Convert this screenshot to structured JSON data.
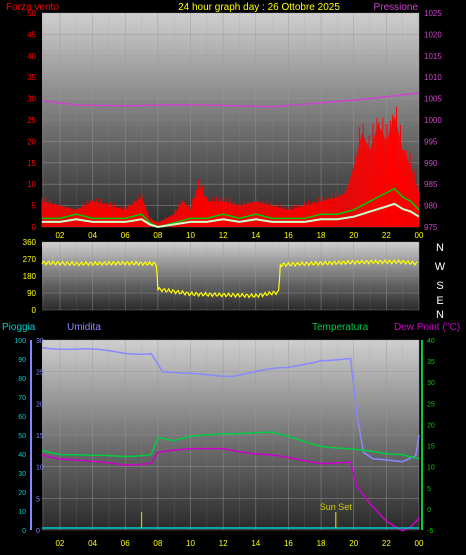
{
  "header": {
    "wind_label": "Forza vento",
    "title": "24 hour graph day : 26 Ottobre 2025",
    "pressure_label": "Pressione"
  },
  "colors": {
    "background": "#000000",
    "panel_top": "#c8c8c8",
    "panel_bottom": "#2a2a2a",
    "wind_gust": "#ff0000",
    "wind_speed": "#00cc00",
    "wind_light": "#ccffcc",
    "pressure": "#cc44cc",
    "direction": "#ffff00",
    "humidity": "#8888ff",
    "temperature": "#00cc44",
    "dewpoint": "#cc00cc",
    "rain": "#00cccc",
    "sunset": "#cccc00",
    "left_axis_text": "#ff0000",
    "right_axis_text": "#cc44cc",
    "temp_axis_text": "#00cc00",
    "rain_axis_text": "#00cccc",
    "hum_axis_text": "#8888ff",
    "dir_axis_text": "#ffff00",
    "hour_text": "#ffff00"
  },
  "hour_ticks": [
    "02",
    "04",
    "06",
    "08",
    "10",
    "12",
    "14",
    "16",
    "18",
    "20",
    "22",
    "00"
  ],
  "wind_axis_ticks": [
    "50",
    "45",
    "40",
    "35",
    "30",
    "25",
    "20",
    "15",
    "10",
    "5",
    "0"
  ],
  "pressure_axis_ticks": [
    "1025",
    "1020",
    "1015",
    "1010",
    "1005",
    "1000",
    "995",
    "990",
    "985",
    "980",
    "975"
  ],
  "direction_axis_ticks": [
    "360",
    "270",
    "180",
    "90",
    "0"
  ],
  "compass_letters": [
    "N",
    "W",
    "S",
    "E",
    "N"
  ],
  "lower_header": {
    "rain_label": "Pioggia",
    "humidity_label": "Umidita",
    "temperature_label": "Temperatura",
    "dewpoint_label": "Dew Point (°C)"
  },
  "rain_axis_ticks": [
    "100",
    "90",
    "80",
    "70",
    "60",
    "50",
    "40",
    "30",
    "20",
    "10",
    "0"
  ],
  "humidity_axis_ticks": [
    "30",
    "25",
    "20",
    "15",
    "10",
    "5",
    "0"
  ],
  "temp_axis_ticks": [
    "40",
    "35",
    "30",
    "25",
    "20",
    "15",
    "10",
    "5",
    "0",
    "-5"
  ],
  "sunset_label": "Sun Set",
  "chart_data": [
    {
      "type": "line",
      "x_unit": "hour",
      "xlim": [
        0.9,
        24
      ],
      "ylim_left": [
        0,
        50
      ],
      "ylim_right": [
        975,
        1025
      ],
      "series": [
        {
          "name": "Forza vento",
          "axis": "left",
          "x": [
            0.9,
            2,
            3,
            4,
            5,
            6,
            7,
            7.5,
            8,
            9,
            9.5,
            10,
            10.5,
            11,
            12,
            13,
            14,
            15,
            16,
            17,
            18,
            19,
            19.5,
            20,
            20.5,
            21,
            21.5,
            22,
            22.5,
            23,
            23.5,
            24
          ],
          "values": [
            6,
            5,
            4,
            6,
            5,
            4,
            7,
            2,
            1,
            3,
            6,
            4,
            10,
            6,
            6,
            5,
            6,
            5,
            4,
            5,
            6,
            7,
            8,
            14,
            22,
            18,
            24,
            20,
            26,
            18,
            14,
            8
          ]
        },
        {
          "name": "",
          "axis": "left",
          "x": [
            0.9,
            2,
            3,
            4,
            5,
            6,
            7,
            7.5,
            8,
            9,
            10,
            11,
            12,
            13,
            14,
            15,
            16,
            17,
            18,
            19,
            20,
            20.5,
            21,
            21.5,
            22,
            22.5,
            23,
            23.5,
            24
          ],
          "values": [
            2,
            2,
            3,
            2,
            2,
            2,
            3,
            1,
            0,
            1,
            2,
            2,
            3,
            2,
            3,
            2,
            2,
            2,
            3,
            3,
            4,
            5,
            6,
            7,
            8,
            9,
            7,
            6,
            4
          ]
        },
        {
          "name": "Pressione",
          "axis": "right",
          "x": [
            0.9,
            3,
            6,
            9,
            12,
            15,
            18,
            21,
            24
          ],
          "values": [
            1004.5,
            1003.5,
            1003.3,
            1003.6,
            1003.4,
            1003.1,
            1004.0,
            1005.0,
            1006.3
          ]
        }
      ]
    },
    {
      "type": "line",
      "x_unit": "hour",
      "xlim": [
        0.9,
        24
      ],
      "ylim": [
        0,
        360
      ],
      "series": [
        {
          "name": "",
          "x": [
            0.9,
            3,
            6,
            7.9,
            8,
            10,
            12,
            14,
            15.4,
            15.5,
            17,
            19,
            21,
            23,
            24
          ],
          "values": [
            250,
            245,
            248,
            245,
            110,
            85,
            80,
            75,
            95,
            240,
            245,
            250,
            255,
            255,
            245
          ]
        }
      ]
    },
    {
      "type": "line",
      "x_unit": "hour",
      "xlim": [
        0.9,
        24
      ],
      "ylim_rain": [
        0,
        100
      ],
      "ylim_humidity": [
        0,
        30
      ],
      "ylim_temperature": [
        -5,
        40
      ],
      "series": [
        {
          "name": "Umidita",
          "axis": "humidity",
          "x": [
            0.9,
            3,
            6,
            7.6,
            8.3,
            9.5,
            11,
            12.5,
            14,
            16,
            18,
            19.8,
            20.2,
            20.6,
            21.2,
            22,
            23,
            23.8,
            24
          ],
          "values": [
            29,
            28.5,
            28,
            28,
            25,
            24.5,
            24.5,
            24.5,
            25,
            25.5,
            27,
            27,
            18,
            12,
            11,
            11,
            11,
            12,
            15
          ]
        },
        {
          "name": "Temperatura",
          "axis": "temperature",
          "x": [
            0.9,
            2,
            4,
            6,
            7.6,
            8,
            9,
            10,
            12,
            14,
            15,
            16,
            17,
            18,
            19,
            20,
            21,
            22,
            23,
            24
          ],
          "values": [
            14,
            13,
            12.5,
            12.5,
            13,
            17,
            16,
            17,
            18,
            18,
            18,
            17,
            16,
            15,
            14.5,
            14,
            13.5,
            13,
            13,
            12
          ]
        },
        {
          "name": "Dew Point (°C)",
          "axis": "temperature",
          "x": [
            0.9,
            2,
            4,
            6,
            7.6,
            8,
            10,
            12,
            14,
            16,
            18,
            19.8,
            20.2,
            21,
            22,
            23,
            23.5,
            24
          ],
          "values": [
            13,
            12,
            11,
            10.5,
            11,
            13.5,
            14,
            14.5,
            13,
            12,
            11,
            11,
            5,
            1,
            -3,
            -5,
            -4,
            -2
          ]
        },
        {
          "name": "Pioggia",
          "axis": "rain",
          "x": [
            0.9,
            24
          ],
          "values": [
            0,
            0
          ]
        }
      ],
      "annotations": [
        {
          "text": "Sun Set",
          "x": 18.9
        }
      ]
    }
  ]
}
